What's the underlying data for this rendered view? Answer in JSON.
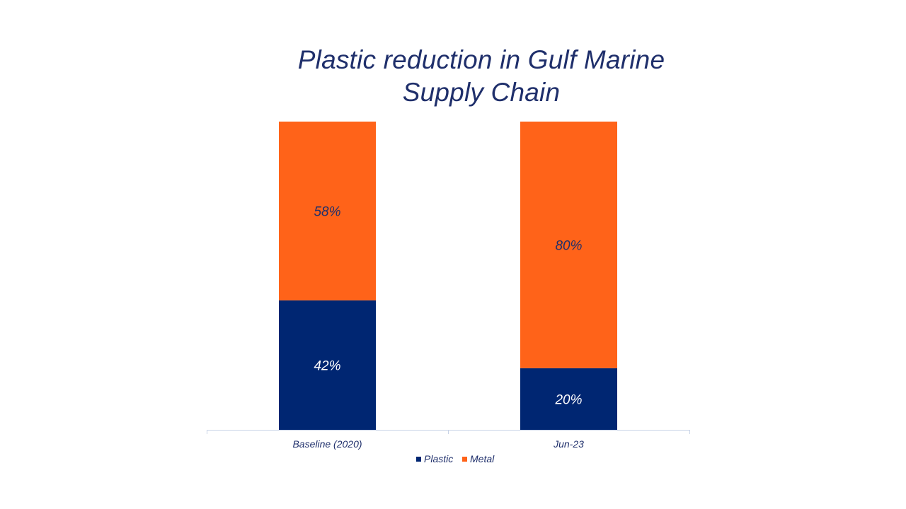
{
  "chart_data": {
    "type": "bar",
    "stacked": true,
    "percent": true,
    "title": "Plastic reduction in Gulf Marine Supply Chain",
    "title_lines": [
      "Plastic reduction in Gulf Marine",
      "Supply Chain"
    ],
    "categories": [
      "Baseline (2020)",
      "Jun-23"
    ],
    "series": [
      {
        "name": "Plastic",
        "values": [
          42,
          20
        ],
        "labels": [
          "42%",
          "20%"
        ],
        "color": "#002672",
        "label_color": "#ffffff"
      },
      {
        "name": "Metal",
        "values": [
          58,
          80
        ],
        "labels": [
          "58%",
          "80%"
        ],
        "color": "#ff6319",
        "label_color": "#1f2f6b"
      }
    ],
    "ylim": [
      0,
      100
    ],
    "grid": false,
    "legend_position": "bottom",
    "axis_color": "#c8d3e6"
  }
}
